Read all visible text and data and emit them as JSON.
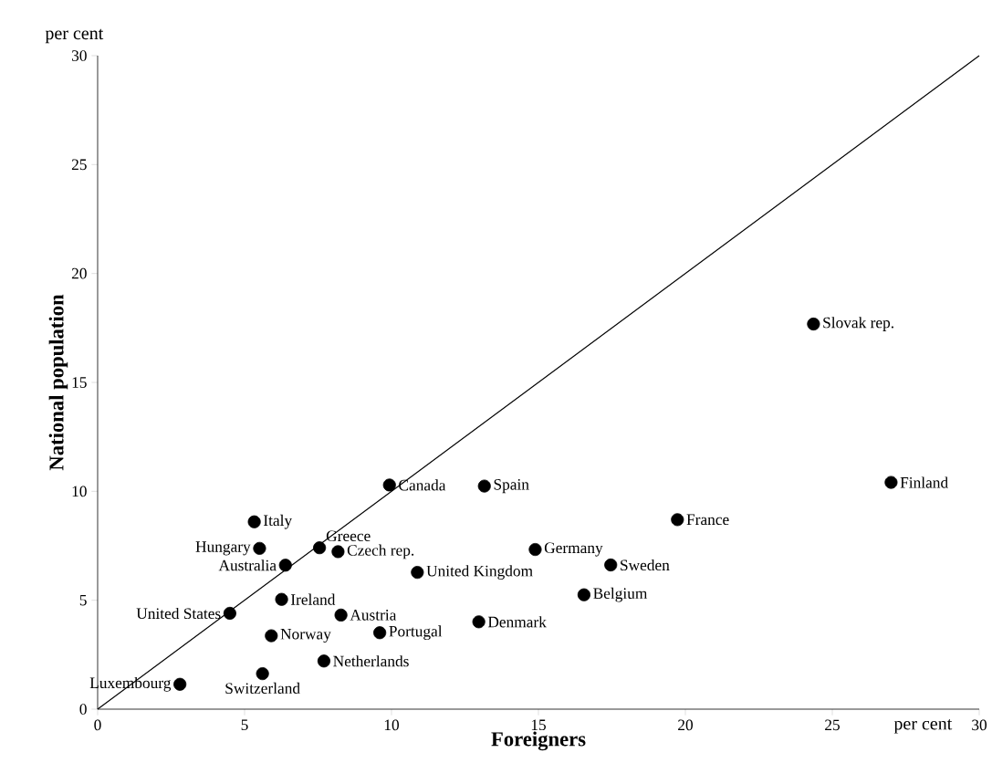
{
  "chart_data": {
    "type": "scatter",
    "xlabel": "Foreigners",
    "ylabel": "National population",
    "xlim": [
      0,
      30
    ],
    "ylim": [
      0,
      30
    ],
    "xticks": [
      0,
      5,
      10,
      15,
      20,
      25,
      30
    ],
    "yticks": [
      0,
      5,
      10,
      15,
      20,
      25,
      30
    ],
    "series": [
      {
        "color": "#000000",
        "marker": "circle",
        "x": [
          24.36,
          27.0,
          19.73,
          9.93,
          13.16,
          5.33,
          5.51,
          7.55,
          8.18,
          6.39,
          14.89,
          10.88,
          17.46,
          6.26,
          16.55,
          4.5,
          8.28,
          5.91,
          9.6,
          12.97,
          7.7,
          5.61,
          2.8
        ],
        "values": [
          17.68,
          10.41,
          8.7,
          10.29,
          10.24,
          8.6,
          7.38,
          7.41,
          7.23,
          6.61,
          7.33,
          6.28,
          6.62,
          5.04,
          5.25,
          4.4,
          4.32,
          3.37,
          3.51,
          4.01,
          2.21,
          1.63,
          1.14
        ]
      },
      {
        "type": "line",
        "color": "#000000",
        "marker": "none",
        "x": [
          0,
          30
        ],
        "values": [
          0,
          30
        ]
      }
    ],
    "annotations": [
      "per cent",
      "per cent",
      {
        "text": "Slovak rep.",
        "x": 24.36,
        "y": 17.68
      },
      {
        "text": "Finland",
        "x": 27.0,
        "y": 10.41
      },
      {
        "text": "France",
        "x": 19.73,
        "y": 8.7
      },
      {
        "text": "Canada",
        "x": 9.93,
        "y": 10.29
      },
      {
        "text": "Spain",
        "x": 13.16,
        "y": 10.24
      },
      {
        "text": "Italy",
        "x": 5.33,
        "y": 8.6
      },
      {
        "text": "Hungary",
        "x": 5.51,
        "y": 7.38
      },
      {
        "text": "Greece",
        "x": 7.55,
        "y": 7.41
      },
      {
        "text": "Czech rep.",
        "x": 8.18,
        "y": 7.23
      },
      {
        "text": "Australia",
        "x": 6.39,
        "y": 6.61
      },
      {
        "text": "Germany",
        "x": 14.89,
        "y": 7.33
      },
      {
        "text": "United Kingdom",
        "x": 10.88,
        "y": 6.28
      },
      {
        "text": "Sweden",
        "x": 17.46,
        "y": 6.62
      },
      {
        "text": "Ireland",
        "x": 6.26,
        "y": 5.04
      },
      {
        "text": "Belgium",
        "x": 16.55,
        "y": 5.25
      },
      {
        "text": "United States",
        "x": 4.5,
        "y": 4.4
      },
      {
        "text": "Austria",
        "x": 8.28,
        "y": 4.32
      },
      {
        "text": "Norway",
        "x": 5.91,
        "y": 3.37
      },
      {
        "text": "Portugal",
        "x": 9.6,
        "y": 3.51
      },
      {
        "text": "Denmark",
        "x": 12.97,
        "y": 4.01
      },
      {
        "text": "Netherlands",
        "x": 7.7,
        "y": 2.21
      },
      {
        "text": "Switzerland",
        "x": 5.61,
        "y": 1.63
      },
      {
        "text": "Luxembourg",
        "x": 2.8,
        "y": 1.14
      }
    ]
  }
}
